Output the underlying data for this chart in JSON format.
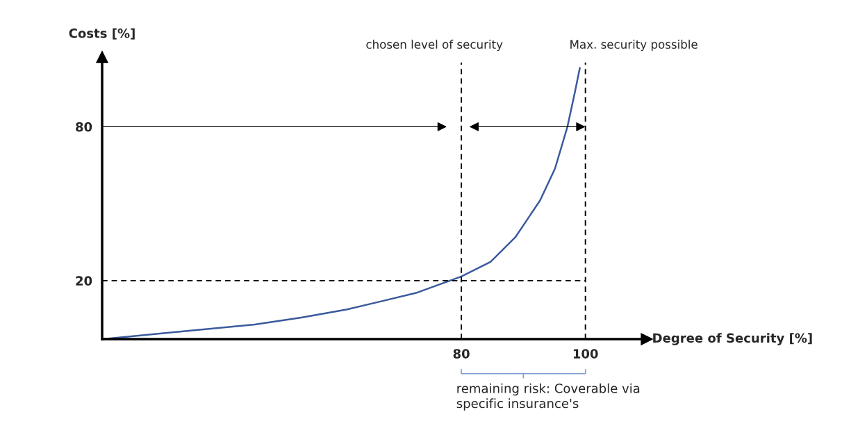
{
  "chart_data": {
    "type": "line",
    "xlabel": "Degree of Security [%]",
    "ylabel": "Costs [%]",
    "xlim": [
      22.1,
      109
    ],
    "ylim": [
      -2.8,
      105
    ],
    "xticks": [
      80,
      100
    ],
    "yticks": [
      20,
      80
    ],
    "grid": false,
    "series": [
      {
        "color": "#3a5a9c",
        "x": [
          22.2,
          35.5,
          46.7,
          54.2,
          61.6,
          67.2,
          72.7,
          80,
          84.7,
          88.7,
          92.7,
          95.1,
          97.1,
          98.3,
          99.1
        ],
        "values": [
          -2.8,
          0.3,
          2.9,
          5.6,
          8.8,
          12.0,
          15.2,
          21.6,
          27.3,
          36.9,
          51.3,
          63.7,
          80,
          93.4,
          102.9
        ]
      }
    ],
    "ref_lines": [
      {
        "axis": "x",
        "value": 80,
        "label": "chosen level of security",
        "line_style": "dashed",
        "color": "#000000"
      },
      {
        "axis": "x",
        "value": 100,
        "label": "Max. security possible",
        "line_style": "dashed",
        "color": "#000000"
      },
      {
        "axis": "y",
        "value": 20,
        "line_style": "dashed",
        "color": "#000000"
      }
    ],
    "annotations": [
      "remaining risk: Coverable via\nspecific insurance's"
    ]
  }
}
